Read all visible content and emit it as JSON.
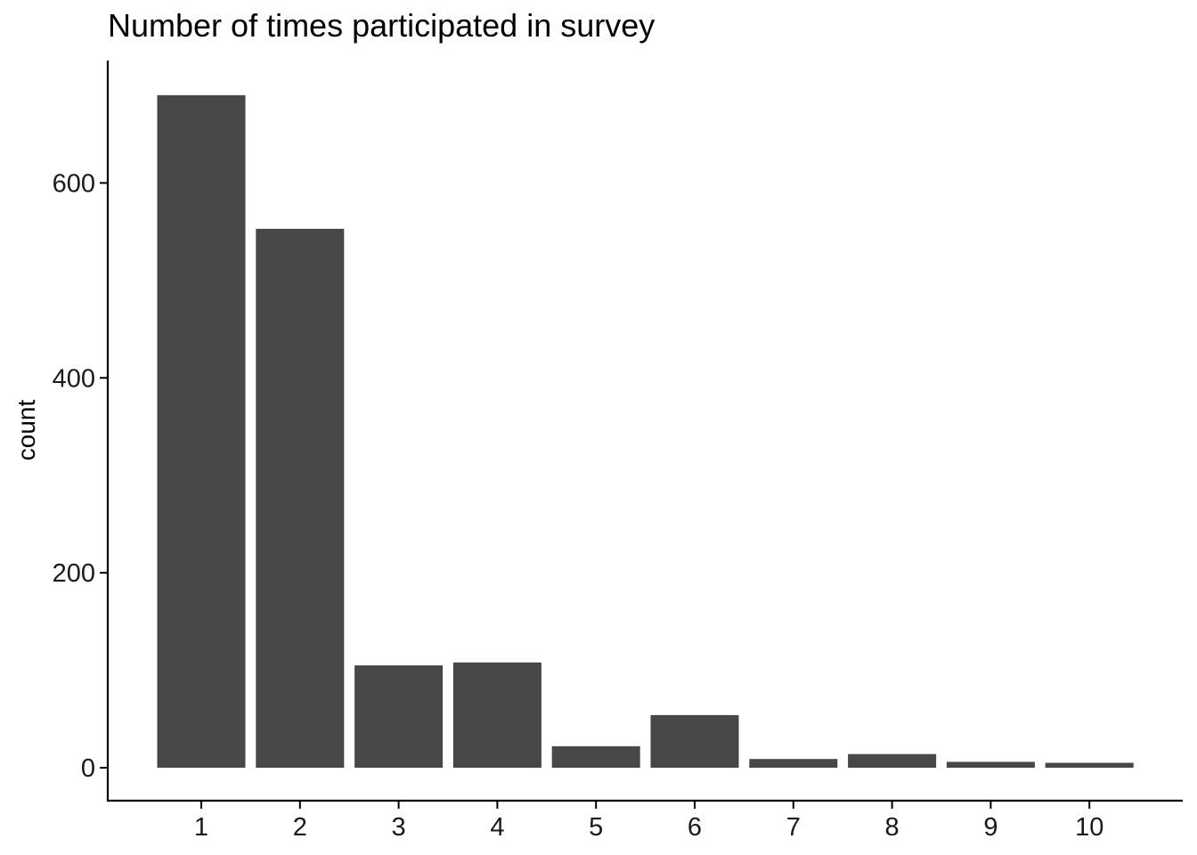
{
  "chart_data": {
    "type": "bar",
    "title": "Number of times participated in survey",
    "xlabel": "",
    "ylabel": "count",
    "categories": [
      "1",
      "2",
      "3",
      "4",
      "5",
      "6",
      "7",
      "8",
      "9",
      "10"
    ],
    "values": [
      690,
      553,
      105,
      108,
      22,
      54,
      9,
      14,
      6,
      5
    ],
    "ylim": [
      0,
      725
    ],
    "yticks": [
      0,
      200,
      400,
      600
    ],
    "grid": false,
    "bar_color": "#474747"
  }
}
